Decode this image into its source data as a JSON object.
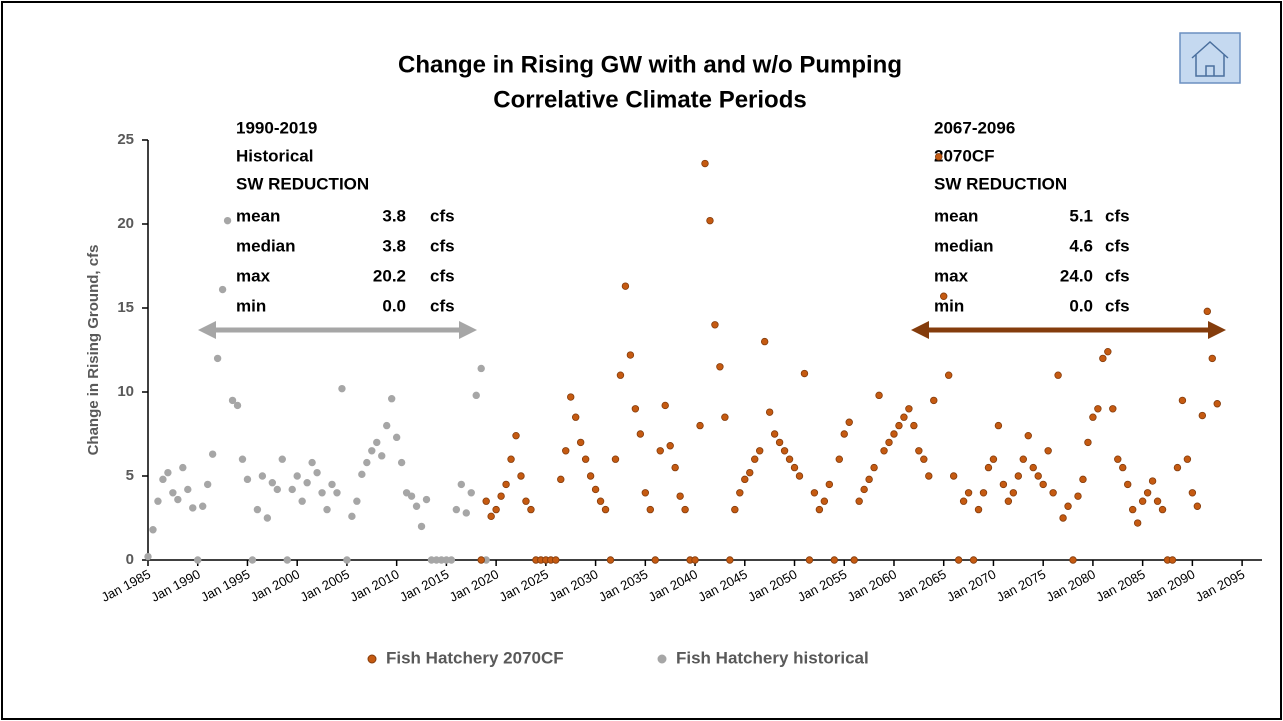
{
  "chart_data": {
    "type": "scatter",
    "title": [
      "Change in Rising GW with and w/o Pumping",
      "Correlative Climate Periods"
    ],
    "ylabel": "Change in Rising Ground, cfs",
    "xlim": [
      "1985-01",
      "2097-01"
    ],
    "xticks": [
      {
        "value": "1985-01",
        "label": "Jan 1985"
      },
      {
        "value": "1990-01",
        "label": "Jan 1990"
      },
      {
        "value": "1995-01",
        "label": "Jan 1995"
      },
      {
        "value": "2000-01",
        "label": "Jan 2000"
      },
      {
        "value": "2005-01",
        "label": "Jan 2005"
      },
      {
        "value": "2010-01",
        "label": "Jan 2010"
      },
      {
        "value": "2015-01",
        "label": "Jan 2015"
      },
      {
        "value": "2020-01",
        "label": "Jan 2020"
      },
      {
        "value": "2025-01",
        "label": "Jan 2025"
      },
      {
        "value": "2030-01",
        "label": "Jan 2030"
      },
      {
        "value": "2035-01",
        "label": "Jan 2035"
      },
      {
        "value": "2040-01",
        "label": "Jan 2040"
      },
      {
        "value": "2045-01",
        "label": "Jan 2045"
      },
      {
        "value": "2050-01",
        "label": "Jan 2050"
      },
      {
        "value": "2055-01",
        "label": "Jan 2055"
      },
      {
        "value": "2060-01",
        "label": "Jan 2060"
      },
      {
        "value": "2065-01",
        "label": "Jan 2065"
      },
      {
        "value": "2070-01",
        "label": "Jan 2070"
      },
      {
        "value": "2075-01",
        "label": "Jan 2075"
      },
      {
        "value": "2080-01",
        "label": "Jan 2080"
      },
      {
        "value": "2085-01",
        "label": "Jan 2085"
      },
      {
        "value": "2090-01",
        "label": "Jan 2090"
      },
      {
        "value": "2095-01",
        "label": "Jan 2095"
      }
    ],
    "ylim": [
      0,
      25
    ],
    "yticks": [
      0,
      5,
      10,
      15,
      20,
      25
    ],
    "grid": false,
    "legend": "bottom",
    "series": [
      {
        "name": "Fish Hatchery 2070CF",
        "color": "#c55a11",
        "edge": "#843c0c",
        "x": [
          "2018-07",
          "2019-01",
          "2019-07",
          "2020-01",
          "2020-07",
          "2021-01",
          "2021-07",
          "2022-01",
          "2022-07",
          "2023-01",
          "2023-07",
          "2024-01",
          "2024-07",
          "2025-01",
          "2025-07",
          "2026-01",
          "2026-07",
          "2027-01",
          "2027-07",
          "2028-01",
          "2028-07",
          "2029-01",
          "2029-07",
          "2030-01",
          "2030-07",
          "2031-01",
          "2031-07",
          "2032-01",
          "2032-07",
          "2033-01",
          "2033-07",
          "2034-01",
          "2034-07",
          "2035-01",
          "2035-07",
          "2036-01",
          "2036-07",
          "2037-01",
          "2037-07",
          "2038-01",
          "2038-07",
          "2039-01",
          "2039-07",
          "2040-01",
          "2040-07",
          "2041-01",
          "2041-07",
          "2042-01",
          "2042-07",
          "2043-01",
          "2043-07",
          "2044-01",
          "2044-07",
          "2045-01",
          "2045-07",
          "2046-01",
          "2046-07",
          "2047-01",
          "2047-07",
          "2048-01",
          "2048-07",
          "2049-01",
          "2049-07",
          "2050-01",
          "2050-07",
          "2051-01",
          "2051-07",
          "2052-01",
          "2052-07",
          "2053-01",
          "2053-07",
          "2054-01",
          "2054-07",
          "2055-01",
          "2055-07",
          "2056-01",
          "2056-07",
          "2057-01",
          "2057-07",
          "2058-01",
          "2058-07",
          "2059-01",
          "2059-07",
          "2060-01",
          "2060-07",
          "2061-01",
          "2061-07",
          "2062-01",
          "2062-07",
          "2063-01",
          "2063-07",
          "2064-01",
          "2064-07",
          "2065-01",
          "2065-07",
          "2066-01",
          "2066-07",
          "2067-01",
          "2067-07",
          "2068-01",
          "2068-07",
          "2069-01",
          "2069-07",
          "2070-01",
          "2070-07",
          "2071-01",
          "2071-07",
          "2072-01",
          "2072-07",
          "2073-01",
          "2073-07",
          "2074-01",
          "2074-07",
          "2075-01",
          "2075-07",
          "2076-01",
          "2076-07",
          "2077-01",
          "2077-07",
          "2078-01",
          "2078-07",
          "2079-01",
          "2079-07",
          "2080-01",
          "2080-07",
          "2081-01",
          "2081-07",
          "2082-01",
          "2082-07",
          "2083-01",
          "2083-07",
          "2084-01",
          "2084-07",
          "2085-01",
          "2085-07",
          "2086-01",
          "2086-07",
          "2087-01",
          "2087-07",
          "2088-01",
          "2088-07",
          "2089-01",
          "2089-07",
          "2090-01",
          "2090-07",
          "2091-01",
          "2091-07",
          "2092-01",
          "2092-07"
        ],
        "values": [
          0.0,
          3.5,
          2.6,
          3.0,
          3.8,
          4.5,
          6.0,
          7.4,
          5.0,
          3.5,
          3.0,
          0.0,
          0.0,
          0.0,
          0.0,
          0.0,
          4.8,
          6.5,
          9.7,
          8.5,
          7.0,
          6.0,
          5.0,
          4.2,
          3.5,
          3.0,
          0.0,
          6.0,
          11.0,
          16.3,
          12.2,
          9.0,
          7.5,
          4.0,
          3.0,
          0.0,
          6.5,
          9.2,
          6.8,
          5.5,
          3.8,
          3.0,
          0.0,
          0.0,
          8.0,
          23.6,
          20.2,
          14.0,
          11.5,
          8.5,
          0.0,
          3.0,
          4.0,
          4.8,
          5.2,
          6.0,
          6.5,
          13.0,
          8.8,
          7.5,
          7.0,
          6.5,
          6.0,
          5.5,
          5.0,
          11.1,
          0.0,
          4.0,
          3.0,
          3.5,
          4.5,
          0.0,
          6.0,
          7.5,
          8.2,
          0.0,
          3.5,
          4.2,
          4.8,
          5.5,
          9.8,
          6.5,
          7.0,
          7.5,
          8.0,
          8.5,
          9.0,
          8.0,
          6.5,
          6.0,
          5.0,
          9.5,
          24.0,
          15.7,
          11.0,
          5.0,
          0.0,
          3.5,
          4.0,
          0.0,
          3.0,
          4.0,
          5.5,
          6.0,
          8.0,
          4.5,
          3.5,
          4.0,
          5.0,
          6.0,
          7.4,
          5.5,
          5.0,
          4.5,
          6.5,
          4.0,
          11.0,
          2.5,
          3.2,
          0.0,
          3.8,
          4.8,
          7.0,
          8.5,
          9.0,
          12.0,
          12.4,
          9.0,
          6.0,
          5.5,
          4.5,
          3.0,
          2.2,
          3.5,
          4.0,
          4.7,
          3.5,
          3.0,
          0.0,
          0.0,
          5.5,
          9.5,
          6.0,
          4.0,
          3.2,
          8.6,
          14.8,
          12.0,
          9.3
        ]
      },
      {
        "name": "Fish Hatchery historical",
        "color": "#a6a6a6",
        "edge": "#a6a6a6",
        "x": [
          "1985-01",
          "1985-07",
          "1986-01",
          "1986-07",
          "1987-01",
          "1987-07",
          "1988-01",
          "1988-07",
          "1989-01",
          "1989-07",
          "1990-01",
          "1990-07",
          "1991-01",
          "1991-07",
          "1992-01",
          "1992-07",
          "1993-01",
          "1993-07",
          "1994-01",
          "1994-07",
          "1995-01",
          "1995-07",
          "1996-01",
          "1996-07",
          "1997-01",
          "1997-07",
          "1998-01",
          "1998-07",
          "1999-01",
          "1999-07",
          "2000-01",
          "2000-07",
          "2001-01",
          "2001-07",
          "2002-01",
          "2002-07",
          "2003-01",
          "2003-07",
          "2004-01",
          "2004-07",
          "2005-01",
          "2005-07",
          "2006-01",
          "2006-07",
          "2007-01",
          "2007-07",
          "2008-01",
          "2008-07",
          "2009-01",
          "2009-07",
          "2010-01",
          "2010-07",
          "2011-01",
          "2011-07",
          "2012-01",
          "2012-07",
          "2013-01",
          "2013-07",
          "2014-01",
          "2014-07",
          "2015-01",
          "2015-07",
          "2016-01",
          "2016-07",
          "2017-01",
          "2017-07",
          "2018-01",
          "2018-07",
          "2019-01"
        ],
        "values": [
          0.2,
          1.8,
          3.5,
          4.8,
          5.2,
          4.0,
          3.6,
          5.5,
          4.2,
          3.1,
          0.0,
          3.2,
          4.5,
          6.3,
          12.0,
          16.1,
          20.2,
          9.5,
          9.2,
          6.0,
          4.8,
          0.0,
          3.0,
          5.0,
          2.5,
          4.6,
          4.2,
          6.0,
          0.0,
          4.2,
          5.0,
          3.5,
          4.6,
          5.8,
          5.2,
          4.0,
          3.0,
          4.5,
          4.0,
          10.2,
          0.0,
          2.6,
          3.5,
          5.1,
          5.8,
          6.5,
          7.0,
          6.2,
          8.0,
          9.6,
          7.3,
          5.8,
          4.0,
          3.8,
          3.2,
          2.0,
          3.6,
          0.0,
          0.0,
          0.0,
          0.0,
          0.0,
          3.0,
          4.5,
          2.8,
          4.0,
          9.8,
          11.4,
          0.0
        ]
      }
    ],
    "annotations": [
      {
        "lines": [
          "1990-2019",
          "Historical",
          "SW REDUCTION"
        ],
        "stats": [
          {
            "label": "mean",
            "value": "3.8",
            "unit": "cfs"
          },
          {
            "label": "median",
            "value": "3.8",
            "unit": "cfs"
          },
          {
            "label": "max",
            "value": "20.2",
            "unit": "cfs"
          },
          {
            "label": "min",
            "value": "0.0",
            "unit": "cfs"
          }
        ]
      },
      {
        "lines": [
          "2067-2096",
          "2070CF",
          "SW REDUCTION"
        ],
        "stats": [
          {
            "label": "mean",
            "value": "5.1",
            "unit": "cfs"
          },
          {
            "label": "median",
            "value": "4.6",
            "unit": "cfs"
          },
          {
            "label": "max",
            "value": "24.0",
            "unit": "cfs"
          },
          {
            "label": "min",
            "value": "0.0",
            "unit": "cfs"
          }
        ]
      }
    ]
  }
}
